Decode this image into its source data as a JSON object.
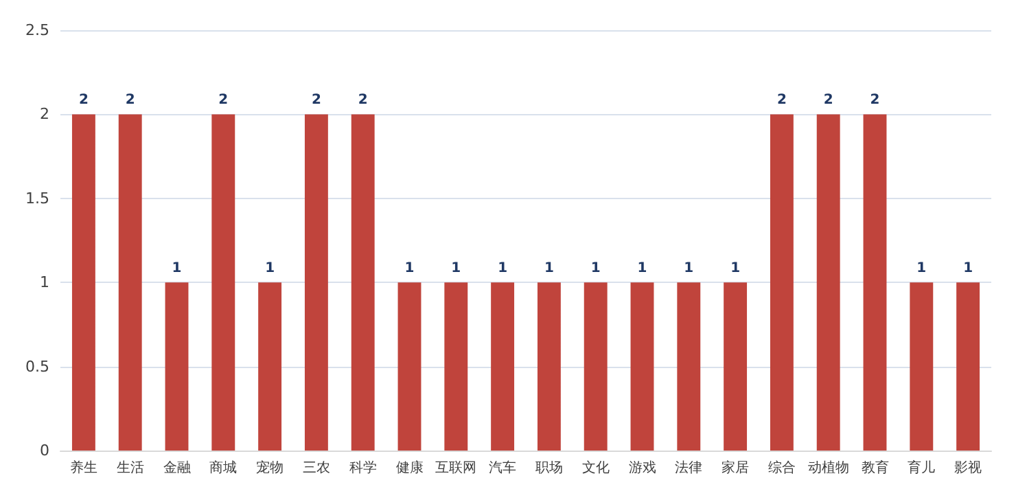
{
  "chart_data": {
    "type": "bar",
    "categories": [
      "养生",
      "生活",
      "金融",
      "商城",
      "宠物",
      "三农",
      "科学",
      "健康",
      "互联网",
      "汽车",
      "职场",
      "文化",
      "游戏",
      "法律",
      "家居",
      "综合",
      "动植物",
      "教育",
      "育儿",
      "影视"
    ],
    "values": [
      2,
      2,
      1,
      2,
      1,
      2,
      2,
      1,
      1,
      1,
      1,
      1,
      1,
      1,
      1,
      2,
      2,
      2,
      1,
      1
    ],
    "color": "#c0443c",
    "ylim": [
      0,
      2.5
    ],
    "yticks": [
      0,
      0.5,
      1,
      1.5,
      2,
      2.5
    ],
    "grid": "y",
    "data_labels": true
  }
}
